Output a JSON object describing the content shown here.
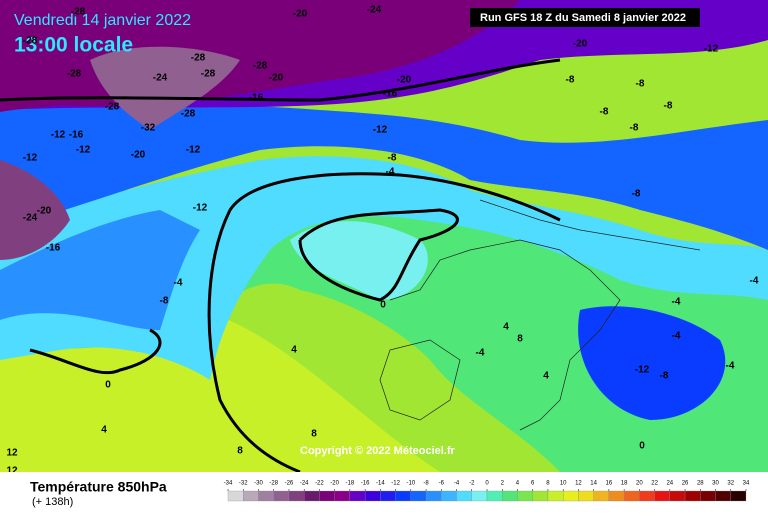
{
  "header": {
    "date": "Vendredi 14 janvier 2022",
    "time": "13:00 locale",
    "run": "Run GFS 18 Z du Samedi 8 janvier 2022"
  },
  "copyright": "Copyright © 2022 Méteociel.fr",
  "contour_labels": [
    "-28",
    "-28",
    "-28",
    "-28",
    "-28",
    "-24",
    "-28",
    "-20",
    "-16",
    "-28",
    "-28",
    "-32",
    "-20",
    "-24",
    "-20",
    "-12",
    "-20",
    "-16",
    "-8",
    "-8",
    "-8",
    "-8",
    "-8",
    "-12",
    "-12",
    "-12",
    "-12",
    "-16",
    "-20",
    "-12",
    "-8",
    "-4",
    "-20",
    "-24",
    "-12",
    "-8",
    "-16",
    "-4",
    "-8",
    "-4",
    "-4",
    "0",
    "4",
    "8",
    "-4",
    "4",
    "0",
    "-12",
    "-8",
    "-4",
    "4",
    "8",
    "0",
    "12",
    "12",
    "8",
    "4",
    "-4"
  ],
  "footer": {
    "title": "Température 850hPa",
    "lead": "(+ 138h)"
  },
  "scale": {
    "ticks": [
      -34,
      -32,
      -30,
      -28,
      -26,
      -24,
      -22,
      -20,
      -18,
      -16,
      -14,
      -12,
      -10,
      -8,
      -6,
      -4,
      -2,
      0,
      2,
      4,
      6,
      8,
      10,
      12,
      14,
      16,
      18,
      20,
      22,
      24,
      26,
      28,
      30,
      32,
      34
    ],
    "colors": [
      "#d8d8d8",
      "#b8a8b8",
      "#a080a0",
      "#906090",
      "#804080",
      "#6a1a6a",
      "#7a007a",
      "#8a008a",
      "#6400c8",
      "#3c00dc",
      "#1e1ef0",
      "#0a3cff",
      "#1464ff",
      "#2890ff",
      "#3cb4ff",
      "#50dcff",
      "#78f0f0",
      "#50f0b4",
      "#50e678",
      "#78e650",
      "#a0e632",
      "#c8f028",
      "#e6f01e",
      "#f0dc1e",
      "#f0b41e",
      "#f08c1e",
      "#f0641e",
      "#f03c1e",
      "#e61414",
      "#c80a0a",
      "#a00000",
      "#780000",
      "#500000",
      "#280000"
    ]
  }
}
